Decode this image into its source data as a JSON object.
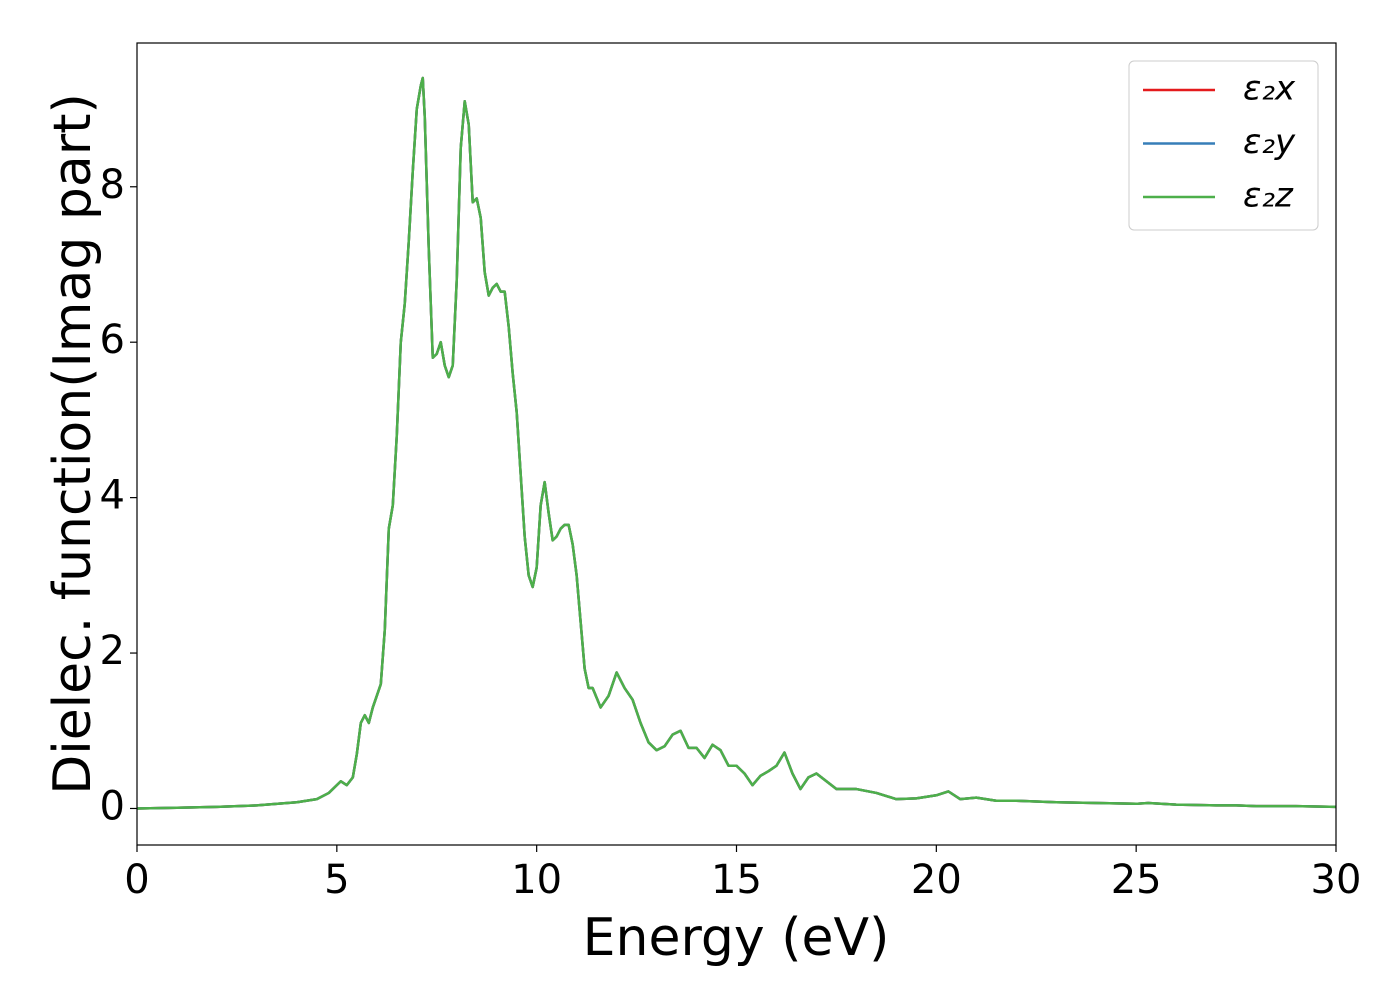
{
  "chart_data": {
    "type": "line",
    "xlabel": "Energy (eV)",
    "ylabel": "Dielec. function(Imag part)",
    "x": [
      0,
      1,
      2,
      3,
      4,
      4.5,
      4.8,
      5,
      5.1,
      5.25,
      5.4,
      5.5,
      5.6,
      5.7,
      5.8,
      5.9,
      6.0,
      6.1,
      6.2,
      6.3,
      6.4,
      6.5,
      6.6,
      6.7,
      6.8,
      6.9,
      7.0,
      7.1,
      7.15,
      7.2,
      7.3,
      7.4,
      7.5,
      7.6,
      7.7,
      7.8,
      7.9,
      8.0,
      8.1,
      8.2,
      8.3,
      8.4,
      8.5,
      8.6,
      8.7,
      8.8,
      8.9,
      9.0,
      9.1,
      9.2,
      9.3,
      9.4,
      9.5,
      9.6,
      9.7,
      9.8,
      9.9,
      10.0,
      10.1,
      10.2,
      10.3,
      10.4,
      10.5,
      10.6,
      10.7,
      10.8,
      10.9,
      11.0,
      11.1,
      11.2,
      11.3,
      11.4,
      11.6,
      11.8,
      12.0,
      12.2,
      12.4,
      12.6,
      12.8,
      13.0,
      13.2,
      13.4,
      13.6,
      13.8,
      14.0,
      14.2,
      14.4,
      14.6,
      14.8,
      15.0,
      15.2,
      15.4,
      15.6,
      15.8,
      16.0,
      16.2,
      16.4,
      16.6,
      16.8,
      17.0,
      17.5,
      18,
      18.5,
      19,
      19.5,
      20,
      20.3,
      20.6,
      21,
      21.5,
      22,
      23,
      24,
      25,
      25.3,
      26,
      27,
      27.5,
      28,
      29,
      30
    ],
    "series": [
      {
        "name": "ε₂x",
        "color": "#e41a1c",
        "values": [
          0.0,
          0.01,
          0.02,
          0.04,
          0.08,
          0.12,
          0.2,
          0.3,
          0.35,
          0.3,
          0.4,
          0.7,
          1.1,
          1.2,
          1.1,
          1.3,
          1.45,
          1.6,
          2.3,
          3.6,
          3.9,
          4.8,
          6.0,
          6.5,
          7.3,
          8.2,
          9.0,
          9.3,
          9.4,
          8.9,
          7.2,
          5.8,
          5.85,
          6.0,
          5.7,
          5.55,
          5.7,
          6.8,
          8.5,
          9.1,
          8.8,
          7.8,
          7.85,
          7.6,
          6.9,
          6.6,
          6.7,
          6.75,
          6.65,
          6.65,
          6.2,
          5.6,
          5.1,
          4.3,
          3.5,
          3.0,
          2.85,
          3.1,
          3.9,
          4.2,
          3.8,
          3.45,
          3.5,
          3.6,
          3.65,
          3.65,
          3.4,
          3.0,
          2.4,
          1.8,
          1.55,
          1.55,
          1.3,
          1.45,
          1.75,
          1.55,
          1.4,
          1.1,
          0.85,
          0.75,
          0.8,
          0.95,
          1.0,
          0.78,
          0.78,
          0.65,
          0.82,
          0.75,
          0.55,
          0.55,
          0.45,
          0.3,
          0.42,
          0.48,
          0.55,
          0.72,
          0.45,
          0.25,
          0.4,
          0.45,
          0.25,
          0.25,
          0.2,
          0.12,
          0.13,
          0.17,
          0.22,
          0.12,
          0.14,
          0.1,
          0.1,
          0.08,
          0.07,
          0.06,
          0.07,
          0.05,
          0.04,
          0.04,
          0.03,
          0.03,
          0.02
        ]
      },
      {
        "name": "ε₂y",
        "color": "#377eb8",
        "values": [
          0.0,
          0.01,
          0.02,
          0.04,
          0.08,
          0.12,
          0.2,
          0.3,
          0.35,
          0.3,
          0.4,
          0.7,
          1.1,
          1.2,
          1.1,
          1.3,
          1.45,
          1.6,
          2.3,
          3.6,
          3.9,
          4.8,
          6.0,
          6.5,
          7.3,
          8.2,
          9.0,
          9.3,
          9.4,
          8.9,
          7.2,
          5.8,
          5.85,
          6.0,
          5.7,
          5.55,
          5.7,
          6.8,
          8.5,
          9.1,
          8.8,
          7.8,
          7.85,
          7.6,
          6.9,
          6.6,
          6.7,
          6.75,
          6.65,
          6.65,
          6.2,
          5.6,
          5.1,
          4.3,
          3.5,
          3.0,
          2.85,
          3.1,
          3.9,
          4.2,
          3.8,
          3.45,
          3.5,
          3.6,
          3.65,
          3.65,
          3.4,
          3.0,
          2.4,
          1.8,
          1.55,
          1.55,
          1.3,
          1.45,
          1.75,
          1.55,
          1.4,
          1.1,
          0.85,
          0.75,
          0.8,
          0.95,
          1.0,
          0.78,
          0.78,
          0.65,
          0.82,
          0.75,
          0.55,
          0.55,
          0.45,
          0.3,
          0.42,
          0.48,
          0.55,
          0.72,
          0.45,
          0.25,
          0.4,
          0.45,
          0.25,
          0.25,
          0.2,
          0.12,
          0.13,
          0.17,
          0.22,
          0.12,
          0.14,
          0.1,
          0.1,
          0.08,
          0.07,
          0.06,
          0.07,
          0.05,
          0.04,
          0.04,
          0.03,
          0.03,
          0.02
        ]
      },
      {
        "name": "ε₂z",
        "color": "#4daf4a",
        "values": [
          0.0,
          0.01,
          0.02,
          0.04,
          0.08,
          0.12,
          0.2,
          0.3,
          0.35,
          0.3,
          0.4,
          0.7,
          1.1,
          1.2,
          1.1,
          1.3,
          1.45,
          1.6,
          2.3,
          3.6,
          3.9,
          4.8,
          6.0,
          6.5,
          7.3,
          8.2,
          9.0,
          9.3,
          9.4,
          8.9,
          7.2,
          5.8,
          5.85,
          6.0,
          5.7,
          5.55,
          5.7,
          6.8,
          8.5,
          9.1,
          8.8,
          7.8,
          7.85,
          7.6,
          6.9,
          6.6,
          6.7,
          6.75,
          6.65,
          6.65,
          6.2,
          5.6,
          5.1,
          4.3,
          3.5,
          3.0,
          2.85,
          3.1,
          3.9,
          4.2,
          3.8,
          3.45,
          3.5,
          3.6,
          3.65,
          3.65,
          3.4,
          3.0,
          2.4,
          1.8,
          1.55,
          1.55,
          1.3,
          1.45,
          1.75,
          1.55,
          1.4,
          1.1,
          0.85,
          0.75,
          0.8,
          0.95,
          1.0,
          0.78,
          0.78,
          0.65,
          0.82,
          0.75,
          0.55,
          0.55,
          0.45,
          0.3,
          0.42,
          0.48,
          0.55,
          0.72,
          0.45,
          0.25,
          0.4,
          0.45,
          0.25,
          0.25,
          0.2,
          0.12,
          0.13,
          0.17,
          0.22,
          0.12,
          0.14,
          0.1,
          0.1,
          0.08,
          0.07,
          0.06,
          0.07,
          0.05,
          0.04,
          0.04,
          0.03,
          0.03,
          0.02
        ]
      }
    ],
    "xlim": [
      0,
      30
    ],
    "xticks": [
      0,
      5,
      10,
      15,
      20,
      25,
      30
    ],
    "ylim": [
      -0.47,
      9.85
    ],
    "yticks": [
      0,
      2,
      4,
      6,
      8
    ],
    "legend": "upper right",
    "grid": false
  }
}
